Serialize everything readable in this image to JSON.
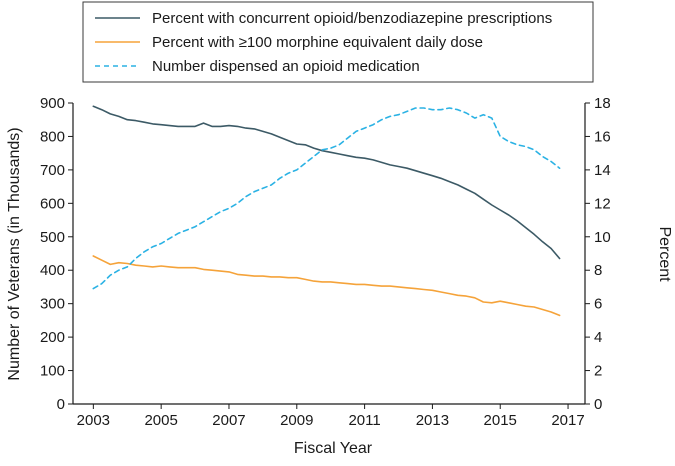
{
  "chart_data": {
    "type": "line",
    "title": "",
    "xlabel": "Fiscal Year",
    "ylabel_left": "Number of Veterans (in Thousands)",
    "ylabel_right": "Percent",
    "xlim": [
      2002.4,
      2017.5
    ],
    "ylim_left": [
      0,
      900
    ],
    "ylim_right": [
      0,
      18
    ],
    "x_ticks": [
      2003,
      2005,
      2007,
      2009,
      2011,
      2013,
      2015,
      2017
    ],
    "y_ticks_left": [
      0,
      100,
      200,
      300,
      400,
      500,
      600,
      700,
      800,
      900
    ],
    "y_ticks_right": [
      0,
      2,
      4,
      6,
      8,
      10,
      12,
      14,
      16,
      18
    ],
    "grid": false,
    "legend_position": "top",
    "legend": [
      {
        "label": "Percent with concurrent opioid/benzodiazepine prescriptions",
        "color": "#3c5a66",
        "dash": "solid"
      },
      {
        "label": "Percent with ≥100 morphine equivalent daily dose",
        "color": "#f5a33a",
        "dash": "solid"
      },
      {
        "label": "Number dispensed an opioid medication",
        "color": "#2bb2e4",
        "dash": "dashed"
      }
    ],
    "series": [
      {
        "name": "Percent with concurrent opioid/benzodiazepine prescriptions",
        "axis": "right",
        "color": "#3c5a66",
        "dash": "solid",
        "x": [
          2003.0,
          2003.25,
          2003.5,
          2003.75,
          2004.0,
          2004.25,
          2004.5,
          2004.75,
          2005.0,
          2005.25,
          2005.5,
          2005.75,
          2006.0,
          2006.25,
          2006.5,
          2006.75,
          2007.0,
          2007.25,
          2007.5,
          2007.75,
          2008.0,
          2008.25,
          2008.5,
          2008.75,
          2009.0,
          2009.25,
          2009.5,
          2009.75,
          2010.0,
          2010.25,
          2010.5,
          2010.75,
          2011.0,
          2011.25,
          2011.5,
          2011.75,
          2012.0,
          2012.25,
          2012.5,
          2012.75,
          2013.0,
          2013.25,
          2013.5,
          2013.75,
          2014.0,
          2014.25,
          2014.5,
          2014.75,
          2015.0,
          2015.25,
          2015.5,
          2015.75,
          2016.0,
          2016.25,
          2016.5,
          2016.75
        ],
        "y": [
          17.8,
          17.6,
          17.35,
          17.2,
          17.0,
          16.95,
          16.85,
          16.75,
          16.7,
          16.65,
          16.6,
          16.6,
          16.6,
          16.8,
          16.6,
          16.6,
          16.65,
          16.6,
          16.5,
          16.45,
          16.3,
          16.15,
          15.95,
          15.75,
          15.55,
          15.5,
          15.3,
          15.15,
          15.05,
          14.95,
          14.85,
          14.75,
          14.7,
          14.6,
          14.45,
          14.3,
          14.2,
          14.1,
          13.95,
          13.8,
          13.65,
          13.5,
          13.3,
          13.1,
          12.85,
          12.6,
          12.25,
          11.9,
          11.6,
          11.3,
          10.95,
          10.55,
          10.15,
          9.7,
          9.3,
          8.7
        ]
      },
      {
        "name": "Percent with ≥100 morphine equivalent daily dose",
        "axis": "right",
        "color": "#f5a33a",
        "dash": "solid",
        "x": [
          2003.0,
          2003.25,
          2003.5,
          2003.75,
          2004.0,
          2004.25,
          2004.5,
          2004.75,
          2005.0,
          2005.25,
          2005.5,
          2005.75,
          2006.0,
          2006.25,
          2006.5,
          2006.75,
          2007.0,
          2007.25,
          2007.5,
          2007.75,
          2008.0,
          2008.25,
          2008.5,
          2008.75,
          2009.0,
          2009.25,
          2009.5,
          2009.75,
          2010.0,
          2010.25,
          2010.5,
          2010.75,
          2011.0,
          2011.25,
          2011.5,
          2011.75,
          2012.0,
          2012.25,
          2012.5,
          2012.75,
          2013.0,
          2013.25,
          2013.5,
          2013.75,
          2014.0,
          2014.25,
          2014.5,
          2014.75,
          2015.0,
          2015.25,
          2015.5,
          2015.75,
          2016.0,
          2016.25,
          2016.5,
          2016.75
        ],
        "y": [
          8.85,
          8.6,
          8.35,
          8.45,
          8.4,
          8.3,
          8.25,
          8.2,
          8.25,
          8.2,
          8.15,
          8.15,
          8.15,
          8.05,
          8.0,
          7.95,
          7.9,
          7.75,
          7.7,
          7.65,
          7.65,
          7.6,
          7.6,
          7.55,
          7.55,
          7.45,
          7.35,
          7.3,
          7.3,
          7.25,
          7.2,
          7.15,
          7.15,
          7.1,
          7.05,
          7.05,
          7.0,
          6.95,
          6.9,
          6.85,
          6.8,
          6.7,
          6.6,
          6.5,
          6.45,
          6.35,
          6.1,
          6.05,
          6.15,
          6.05,
          5.95,
          5.85,
          5.8,
          5.65,
          5.5,
          5.3
        ]
      },
      {
        "name": "Number dispensed an opioid medication",
        "axis": "left",
        "color": "#2bb2e4",
        "dash": "dashed",
        "x": [
          2003.0,
          2003.25,
          2003.5,
          2003.75,
          2004.0,
          2004.25,
          2004.5,
          2004.75,
          2005.0,
          2005.25,
          2005.5,
          2005.75,
          2006.0,
          2006.25,
          2006.5,
          2006.75,
          2007.0,
          2007.25,
          2007.5,
          2007.75,
          2008.0,
          2008.25,
          2008.5,
          2008.75,
          2009.0,
          2009.25,
          2009.5,
          2009.75,
          2010.0,
          2010.25,
          2010.5,
          2010.75,
          2011.0,
          2011.25,
          2011.5,
          2011.75,
          2012.0,
          2012.25,
          2012.5,
          2012.75,
          2013.0,
          2013.25,
          2013.5,
          2013.75,
          2014.0,
          2014.25,
          2014.5,
          2014.75,
          2015.0,
          2015.25,
          2015.5,
          2015.75,
          2016.0,
          2016.25,
          2016.5,
          2016.75
        ],
        "y": [
          345,
          360,
          385,
          400,
          410,
          435,
          455,
          470,
          480,
          495,
          510,
          520,
          530,
          545,
          560,
          575,
          585,
          600,
          620,
          635,
          645,
          655,
          675,
          690,
          700,
          720,
          740,
          760,
          765,
          775,
          795,
          815,
          825,
          835,
          850,
          860,
          865,
          875,
          885,
          885,
          880,
          880,
          885,
          880,
          870,
          855,
          865,
          855,
          800,
          785,
          775,
          770,
          760,
          740,
          725,
          705
        ]
      }
    ]
  }
}
